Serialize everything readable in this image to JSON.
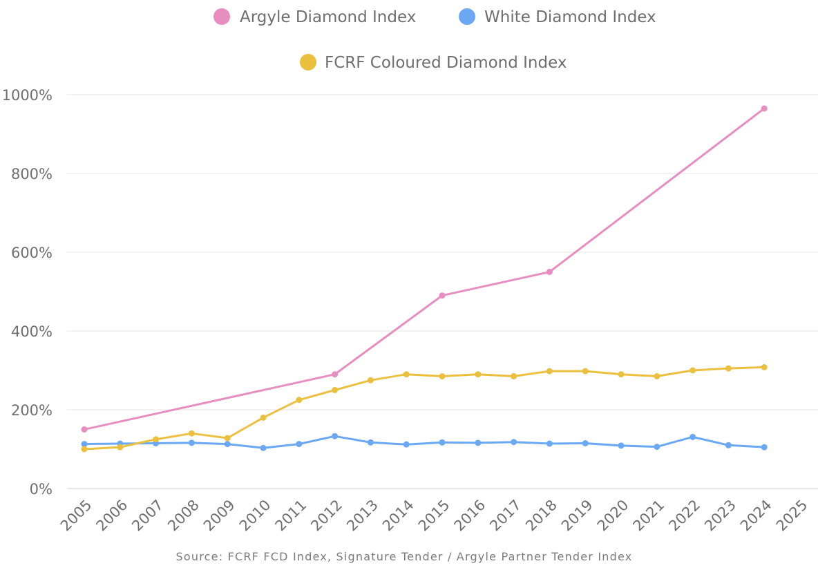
{
  "chart_data": {
    "type": "line",
    "title": "",
    "xlabel": "",
    "ylabel": "",
    "x_ticks": [
      "2005",
      "2006",
      "2007",
      "2008",
      "2009",
      "2010",
      "2011",
      "2012",
      "2013",
      "2014",
      "2015",
      "2016",
      "2017",
      "2018",
      "2019",
      "2020",
      "2021",
      "2022",
      "2023",
      "2024",
      "2025"
    ],
    "y_ticks": [
      "0%",
      "200%",
      "400%",
      "600%",
      "800%",
      "1000%"
    ],
    "xlim": [
      2005,
      2025
    ],
    "ylim": [
      0,
      1000
    ],
    "grid": true,
    "legend_position": "top-center",
    "series": [
      {
        "name": "Argyle Diamond Index",
        "color": "#e88dc0",
        "points": [
          {
            "x": 2005,
            "y": 150
          },
          {
            "x": 2012,
            "y": 290
          },
          {
            "x": 2015,
            "y": 490
          },
          {
            "x": 2018,
            "y": 550
          },
          {
            "x": 2024,
            "y": 965
          }
        ]
      },
      {
        "name": "White Diamond Index",
        "color": "#6aa8f4",
        "points": [
          {
            "x": 2005,
            "y": 113
          },
          {
            "x": 2006,
            "y": 114
          },
          {
            "x": 2007,
            "y": 115
          },
          {
            "x": 2008,
            "y": 116
          },
          {
            "x": 2009,
            "y": 113
          },
          {
            "x": 2010,
            "y": 103
          },
          {
            "x": 2011,
            "y": 113
          },
          {
            "x": 2012,
            "y": 133
          },
          {
            "x": 2013,
            "y": 117
          },
          {
            "x": 2014,
            "y": 112
          },
          {
            "x": 2015,
            "y": 117
          },
          {
            "x": 2016,
            "y": 116
          },
          {
            "x": 2017,
            "y": 118
          },
          {
            "x": 2018,
            "y": 114
          },
          {
            "x": 2019,
            "y": 115
          },
          {
            "x": 2020,
            "y": 109
          },
          {
            "x": 2021,
            "y": 106
          },
          {
            "x": 2022,
            "y": 131
          },
          {
            "x": 2023,
            "y": 110
          },
          {
            "x": 2024,
            "y": 105
          }
        ]
      },
      {
        "name": "FCRF Coloured Diamond Index",
        "color": "#ebc03f",
        "points": [
          {
            "x": 2005,
            "y": 100
          },
          {
            "x": 2006,
            "y": 105
          },
          {
            "x": 2007,
            "y": 125
          },
          {
            "x": 2008,
            "y": 140
          },
          {
            "x": 2009,
            "y": 128
          },
          {
            "x": 2010,
            "y": 180
          },
          {
            "x": 2011,
            "y": 225
          },
          {
            "x": 2012,
            "y": 250
          },
          {
            "x": 2013,
            "y": 275
          },
          {
            "x": 2014,
            "y": 290
          },
          {
            "x": 2015,
            "y": 285
          },
          {
            "x": 2016,
            "y": 290
          },
          {
            "x": 2017,
            "y": 285
          },
          {
            "x": 2018,
            "y": 298
          },
          {
            "x": 2019,
            "y": 298
          },
          {
            "x": 2020,
            "y": 290
          },
          {
            "x": 2021,
            "y": 285
          },
          {
            "x": 2022,
            "y": 300
          },
          {
            "x": 2023,
            "y": 305
          },
          {
            "x": 2024,
            "y": 308
          }
        ]
      }
    ],
    "source": "Source: FCRF FCD Index, Signature Tender / Argyle Partner Tender Index"
  }
}
